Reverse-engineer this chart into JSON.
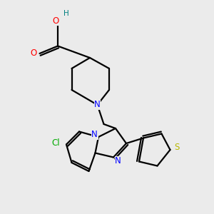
{
  "background_color": "#ebebeb",
  "atom_colors": {
    "O": "#ff0000",
    "N": "#0000ff",
    "S": "#b8b800",
    "Cl": "#00aa00",
    "H": "#008080",
    "C": "#000000"
  },
  "bond_lw": 1.6,
  "label_fontsize": 8.5
}
